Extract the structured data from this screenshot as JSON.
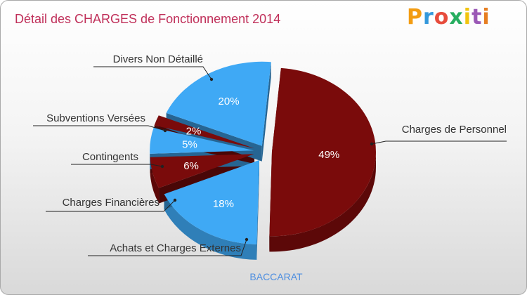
{
  "chart_data": {
    "type": "pie",
    "title": "Détail des CHARGES de Fonctionnement 2014",
    "subtitle": "BACCARAT",
    "slices": [
      {
        "label": "Charges de Personnel",
        "value": 49,
        "display": "49%",
        "color": "#7a0b0b"
      },
      {
        "label": "Achats et Charges Externes",
        "value": 18,
        "display": "18%",
        "color": "#3fa9f5"
      },
      {
        "label": "Charges Financières",
        "value": 6,
        "display": "6%",
        "color": "#7a0b0b"
      },
      {
        "label": "Contingents",
        "value": 5,
        "display": "5%",
        "color": "#3fa9f5"
      },
      {
        "label": "Subventions Versées",
        "value": 2,
        "display": "2%",
        "color": "#7a0b0b"
      },
      {
        "label": "Divers Non Détaillé",
        "value": 20,
        "display": "20%",
        "color": "#3fa9f5"
      }
    ]
  },
  "brand": {
    "logo_text": "Proxiti",
    "logo_colors": [
      "#f39c12",
      "#3498db",
      "#e74c3c",
      "#27ae60",
      "#f1c40f",
      "#9b59b6",
      "#e67e22"
    ]
  }
}
